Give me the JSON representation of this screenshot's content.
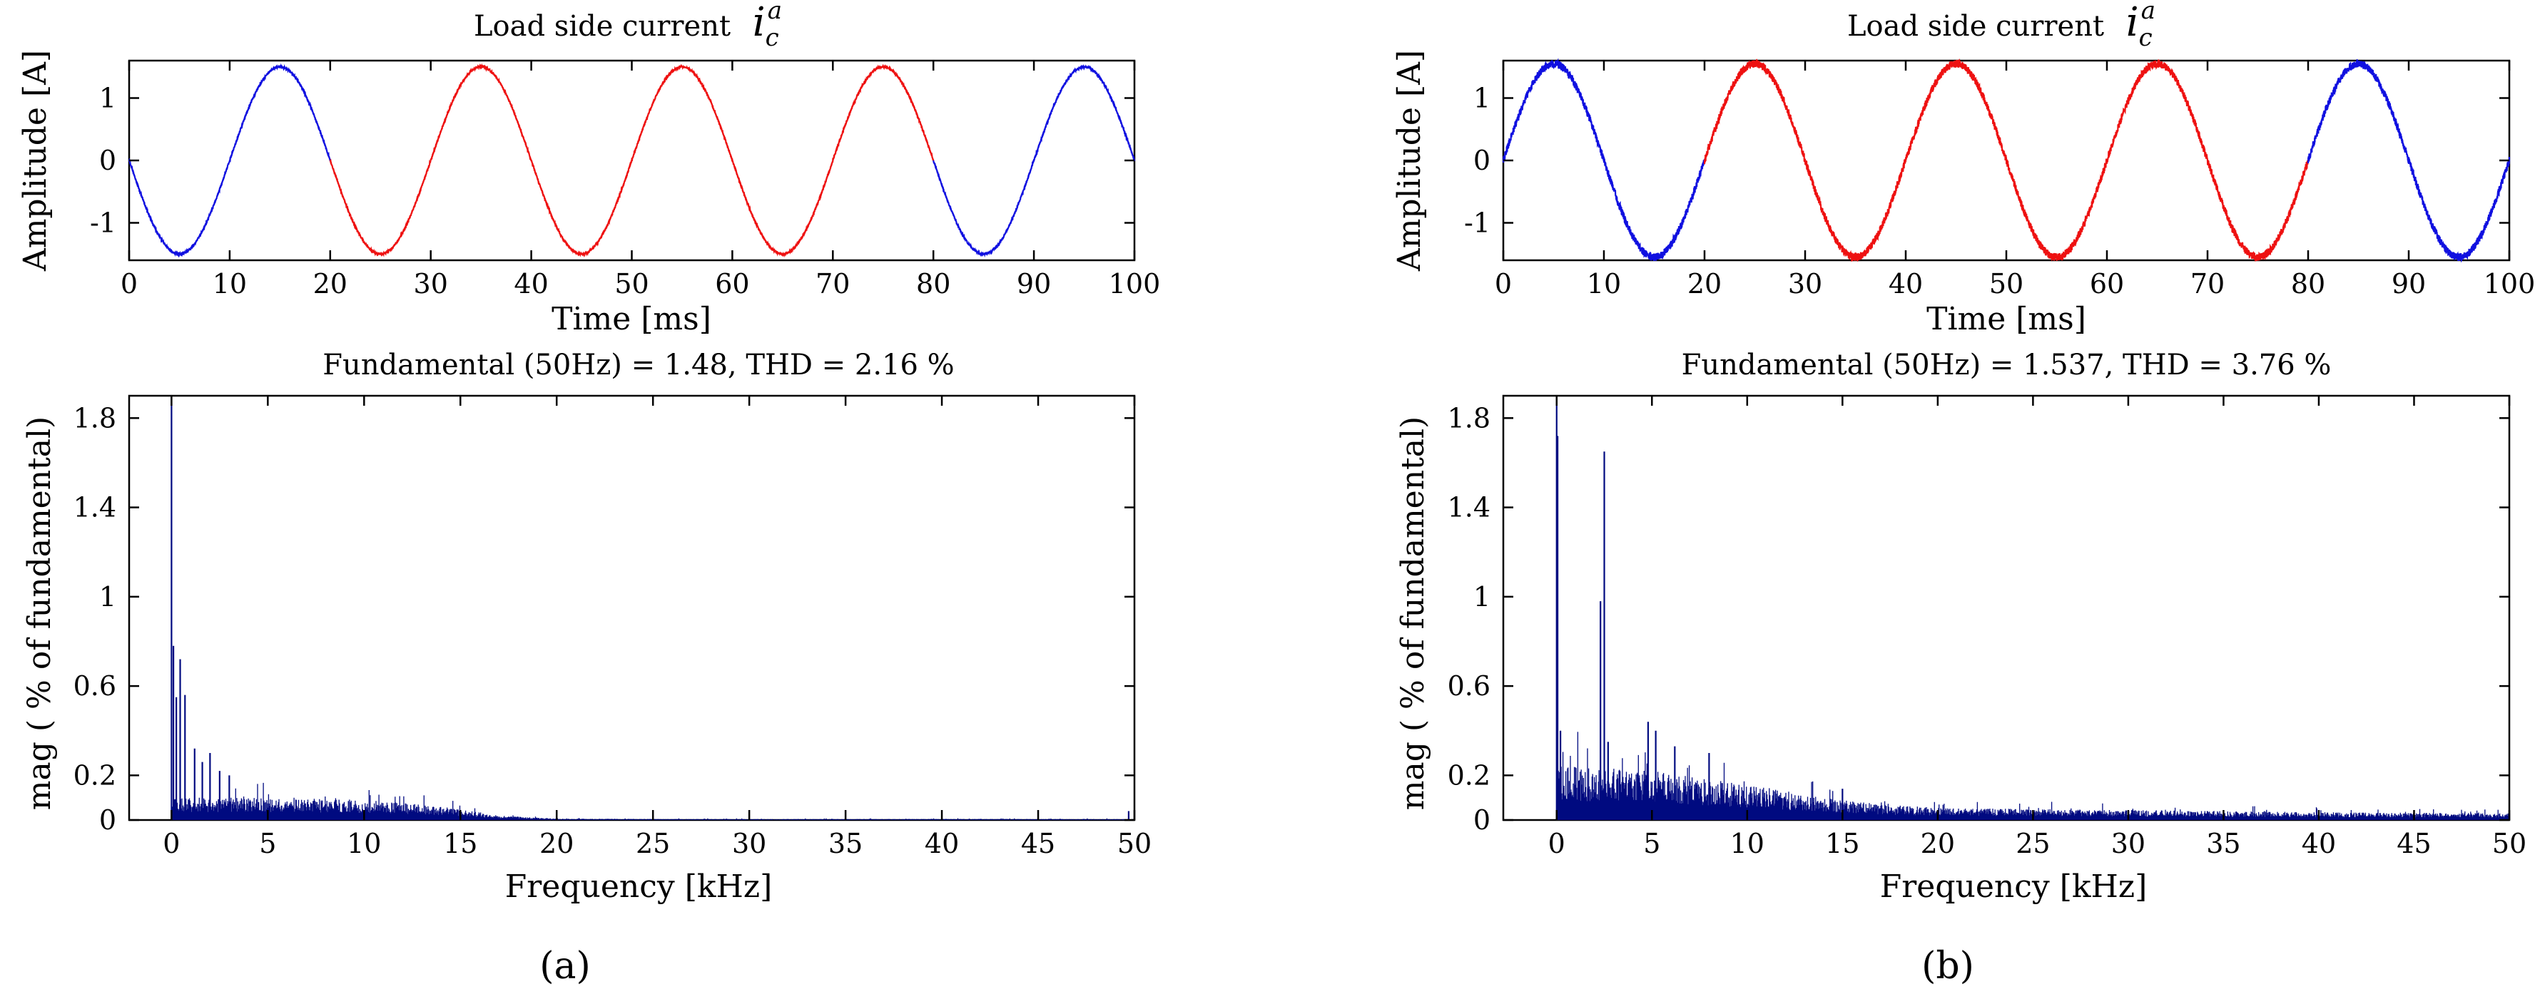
{
  "colors": {
    "blue": "#1010e0",
    "red": "#ee1111",
    "spectrum": "#000a80"
  },
  "panels": [
    {
      "label": "a",
      "label_text": "(a)"
    },
    {
      "label": "b",
      "label_text": "(b)"
    }
  ],
  "chart_data": [
    {
      "type": "line",
      "panel": "a",
      "title": "Load side current",
      "title_symbol": "i",
      "title_sub": "c",
      "title_sup": "a",
      "xlabel": "Time [ms]",
      "ylabel": "Amplitude [A]",
      "xlim": [
        0,
        100
      ],
      "ylim": [
        -1.6,
        1.6
      ],
      "xticks": [
        0,
        10,
        20,
        30,
        40,
        50,
        60,
        70,
        80,
        90,
        100
      ],
      "yticks": [
        -1,
        0,
        1
      ],
      "waveform": {
        "amplitude": 1.5,
        "frequency_hz": 50,
        "phase": "negative-sine",
        "ripple": 0.01
      },
      "series": [
        {
          "name": "segment-1",
          "color": "blue",
          "x_range": [
            0,
            20
          ]
        },
        {
          "name": "segment-2",
          "color": "red",
          "x_range": [
            20,
            80
          ]
        },
        {
          "name": "segment-3",
          "color": "blue",
          "x_range": [
            80,
            100
          ]
        }
      ]
    },
    {
      "type": "bar",
      "panel": "a",
      "title": "Fundamental (50Hz) = 1.48, THD = 2.16 %",
      "xlabel": "Frequency [kHz]",
      "ylabel": "mag ( % of fundamental)",
      "xlim": [
        -2.2,
        50
      ],
      "ylim": [
        0,
        1.9
      ],
      "xticks": [
        0,
        5,
        10,
        15,
        20,
        25,
        30,
        35,
        40,
        45,
        50
      ],
      "yticks": [
        0,
        0.2,
        0.6,
        1,
        1.4,
        1.8
      ],
      "peaks": [
        {
          "x": 0.0,
          "value": 1.9
        },
        {
          "x": 0.1,
          "value": 0.78
        },
        {
          "x": 0.25,
          "value": 0.55
        },
        {
          "x": 0.45,
          "value": 0.72
        },
        {
          "x": 0.7,
          "value": 0.56
        },
        {
          "x": 1.2,
          "value": 0.32
        },
        {
          "x": 1.6,
          "value": 0.26
        },
        {
          "x": 2.0,
          "value": 0.3
        },
        {
          "x": 2.5,
          "value": 0.22
        },
        {
          "x": 3.0,
          "value": 0.2
        },
        {
          "x": 49.7,
          "value": 0.04
        }
      ],
      "noise_envelope": [
        [
          0,
          0.1
        ],
        [
          5,
          0.1
        ],
        [
          10,
          0.09
        ],
        [
          13,
          0.07
        ],
        [
          15,
          0.05
        ],
        [
          17,
          0.02
        ],
        [
          20,
          0.006
        ],
        [
          30,
          0.004
        ],
        [
          40,
          0.005
        ],
        [
          50,
          0.004
        ]
      ]
    },
    {
      "type": "line",
      "panel": "b",
      "title": "Load side current",
      "title_symbol": "i",
      "title_sub": "c",
      "title_sup": "a",
      "xlabel": "Time [ms]",
      "ylabel": "Amplitude [A]",
      "xlim": [
        0,
        100
      ],
      "ylim": [
        -1.6,
        1.6
      ],
      "xticks": [
        0,
        10,
        20,
        30,
        40,
        50,
        60,
        70,
        80,
        90,
        100
      ],
      "yticks": [
        -1,
        0,
        1
      ],
      "waveform": {
        "amplitude": 1.55,
        "frequency_hz": 50,
        "phase": "positive-sine",
        "ripple": 0.04
      },
      "series": [
        {
          "name": "segment-1",
          "color": "blue",
          "x_range": [
            0,
            20
          ]
        },
        {
          "name": "segment-2",
          "color": "red",
          "x_range": [
            20,
            80
          ]
        },
        {
          "name": "segment-3",
          "color": "blue",
          "x_range": [
            80,
            100
          ]
        }
      ]
    },
    {
      "type": "bar",
      "panel": "b",
      "title": "Fundamental (50Hz) = 1.537, THD = 3.76 %",
      "xlabel": "Frequency [kHz]",
      "ylabel": "mag ( % of fundamental)",
      "xlim": [
        -2.8,
        50
      ],
      "ylim": [
        0,
        1.9
      ],
      "xticks": [
        0,
        5,
        10,
        15,
        20,
        25,
        30,
        35,
        40,
        45,
        50
      ],
      "yticks": [
        0,
        0.2,
        0.6,
        1,
        1.4,
        1.8
      ],
      "peaks": [
        {
          "x": 0.0,
          "value": 1.9
        },
        {
          "x": 0.05,
          "value": 1.72
        },
        {
          "x": 0.2,
          "value": 0.4
        },
        {
          "x": 2.3,
          "value": 0.98
        },
        {
          "x": 2.5,
          "value": 1.65
        },
        {
          "x": 2.7,
          "value": 0.35
        },
        {
          "x": 4.8,
          "value": 0.44
        },
        {
          "x": 5.2,
          "value": 0.4
        },
        {
          "x": 6.2,
          "value": 0.33
        },
        {
          "x": 8.0,
          "value": 0.3
        },
        {
          "x": 15.0,
          "value": 0.14
        }
      ],
      "noise_envelope": [
        [
          0,
          0.25
        ],
        [
          5,
          0.22
        ],
        [
          10,
          0.16
        ],
        [
          14,
          0.1
        ],
        [
          17,
          0.07
        ],
        [
          20,
          0.055
        ],
        [
          30,
          0.045
        ],
        [
          40,
          0.035
        ],
        [
          50,
          0.03
        ]
      ]
    }
  ]
}
